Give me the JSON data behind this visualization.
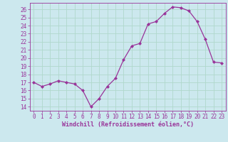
{
  "x": [
    0,
    1,
    2,
    3,
    4,
    5,
    6,
    7,
    8,
    9,
    10,
    11,
    12,
    13,
    14,
    15,
    16,
    17,
    18,
    19,
    20,
    21,
    22,
    23
  ],
  "y": [
    17.0,
    16.5,
    16.8,
    17.2,
    17.0,
    16.8,
    16.0,
    14.0,
    15.0,
    16.5,
    17.5,
    19.8,
    21.5,
    21.8,
    24.2,
    24.5,
    25.5,
    26.3,
    26.2,
    25.8,
    24.5,
    22.3,
    19.5,
    19.4
  ],
  "ylim_min": 13.5,
  "ylim_max": 26.8,
  "yticks": [
    14,
    15,
    16,
    17,
    18,
    19,
    20,
    21,
    22,
    23,
    24,
    25,
    26
  ],
  "xticks": [
    0,
    1,
    2,
    3,
    4,
    5,
    6,
    7,
    8,
    9,
    10,
    11,
    12,
    13,
    14,
    15,
    16,
    17,
    18,
    19,
    20,
    21,
    22,
    23
  ],
  "line_color": "#993399",
  "marker": "D",
  "marker_size": 2.0,
  "bg_color": "#cce8ee",
  "grid_color": "#b0d8cc",
  "xlabel": "Windchill (Refroidissement éolien,°C)",
  "font_color": "#993399",
  "tick_fontsize": 5.5,
  "xlabel_fontsize": 6.0
}
